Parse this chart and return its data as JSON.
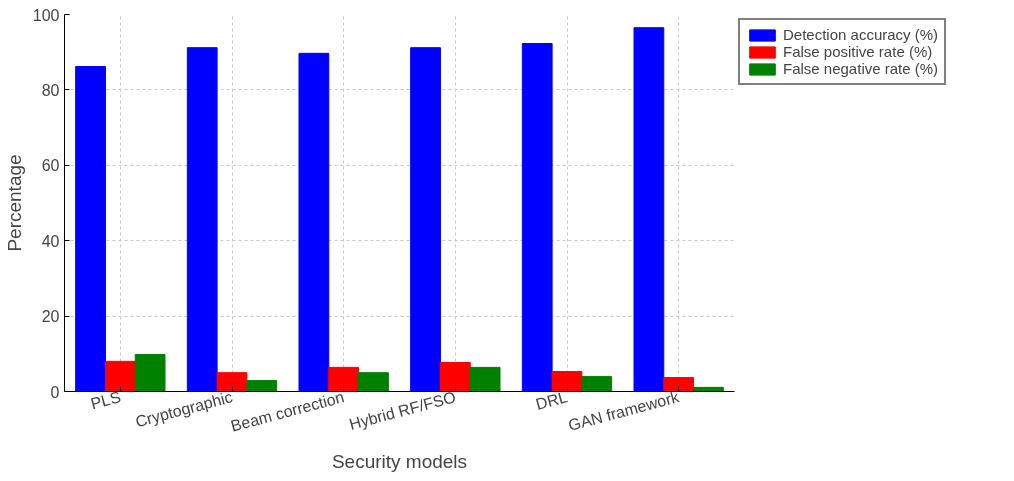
{
  "chart_data": {
    "type": "bar",
    "xlabel": "Security models",
    "ylabel": "Percentage",
    "categories": [
      "PLS",
      "Cryptographic",
      "Beam correction",
      "Hybrid RF/FSO",
      "DRL",
      "GAN framework"
    ],
    "series": [
      {
        "name": "Detection accuracy (%)",
        "color": "#0000ff",
        "values": [
          86.2,
          91.2,
          89.7,
          91.2,
          92.3,
          96.5
        ]
      },
      {
        "name": "False positive rate (%)",
        "color": "#ff0000",
        "values": [
          8.0,
          5.0,
          6.4,
          7.7,
          5.3,
          3.7
        ]
      },
      {
        "name": "False negative rate (%)",
        "color": "#008000",
        "values": [
          9.8,
          2.9,
          5.0,
          6.4,
          4.0,
          1.1
        ]
      }
    ],
    "ylim": [
      0,
      100
    ],
    "yticks": [
      0,
      20,
      40,
      60,
      80,
      100
    ],
    "grid": true,
    "legend": "top right"
  }
}
